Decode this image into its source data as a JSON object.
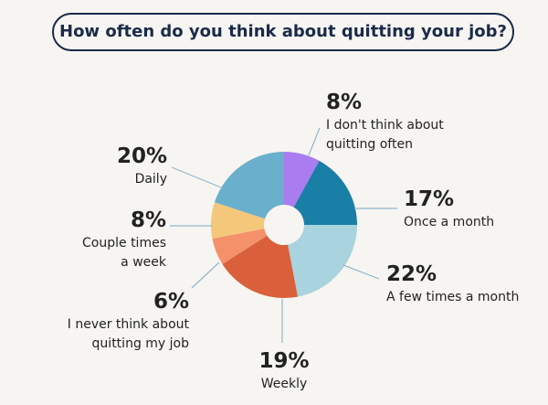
{
  "chart_data": {
    "type": "donut",
    "title": "How often do you think about quitting your job?",
    "categories": [
      "I don't think about quitting often",
      "Once a month",
      "A few times a month",
      "Weekly",
      "I never think about quitting my job",
      "Couple times a week",
      "Daily"
    ],
    "values": [
      8,
      17,
      22,
      19,
      6,
      8,
      20
    ],
    "value_labels": [
      "8%",
      "17%",
      "22%",
      "19%",
      "6%",
      "8%",
      "20%"
    ],
    "colors": [
      "#a97cf0",
      "#1a7fa6",
      "#a9d3de",
      "#d9603b",
      "#f4916b",
      "#f3c87a",
      "#6ab0cc"
    ]
  }
}
